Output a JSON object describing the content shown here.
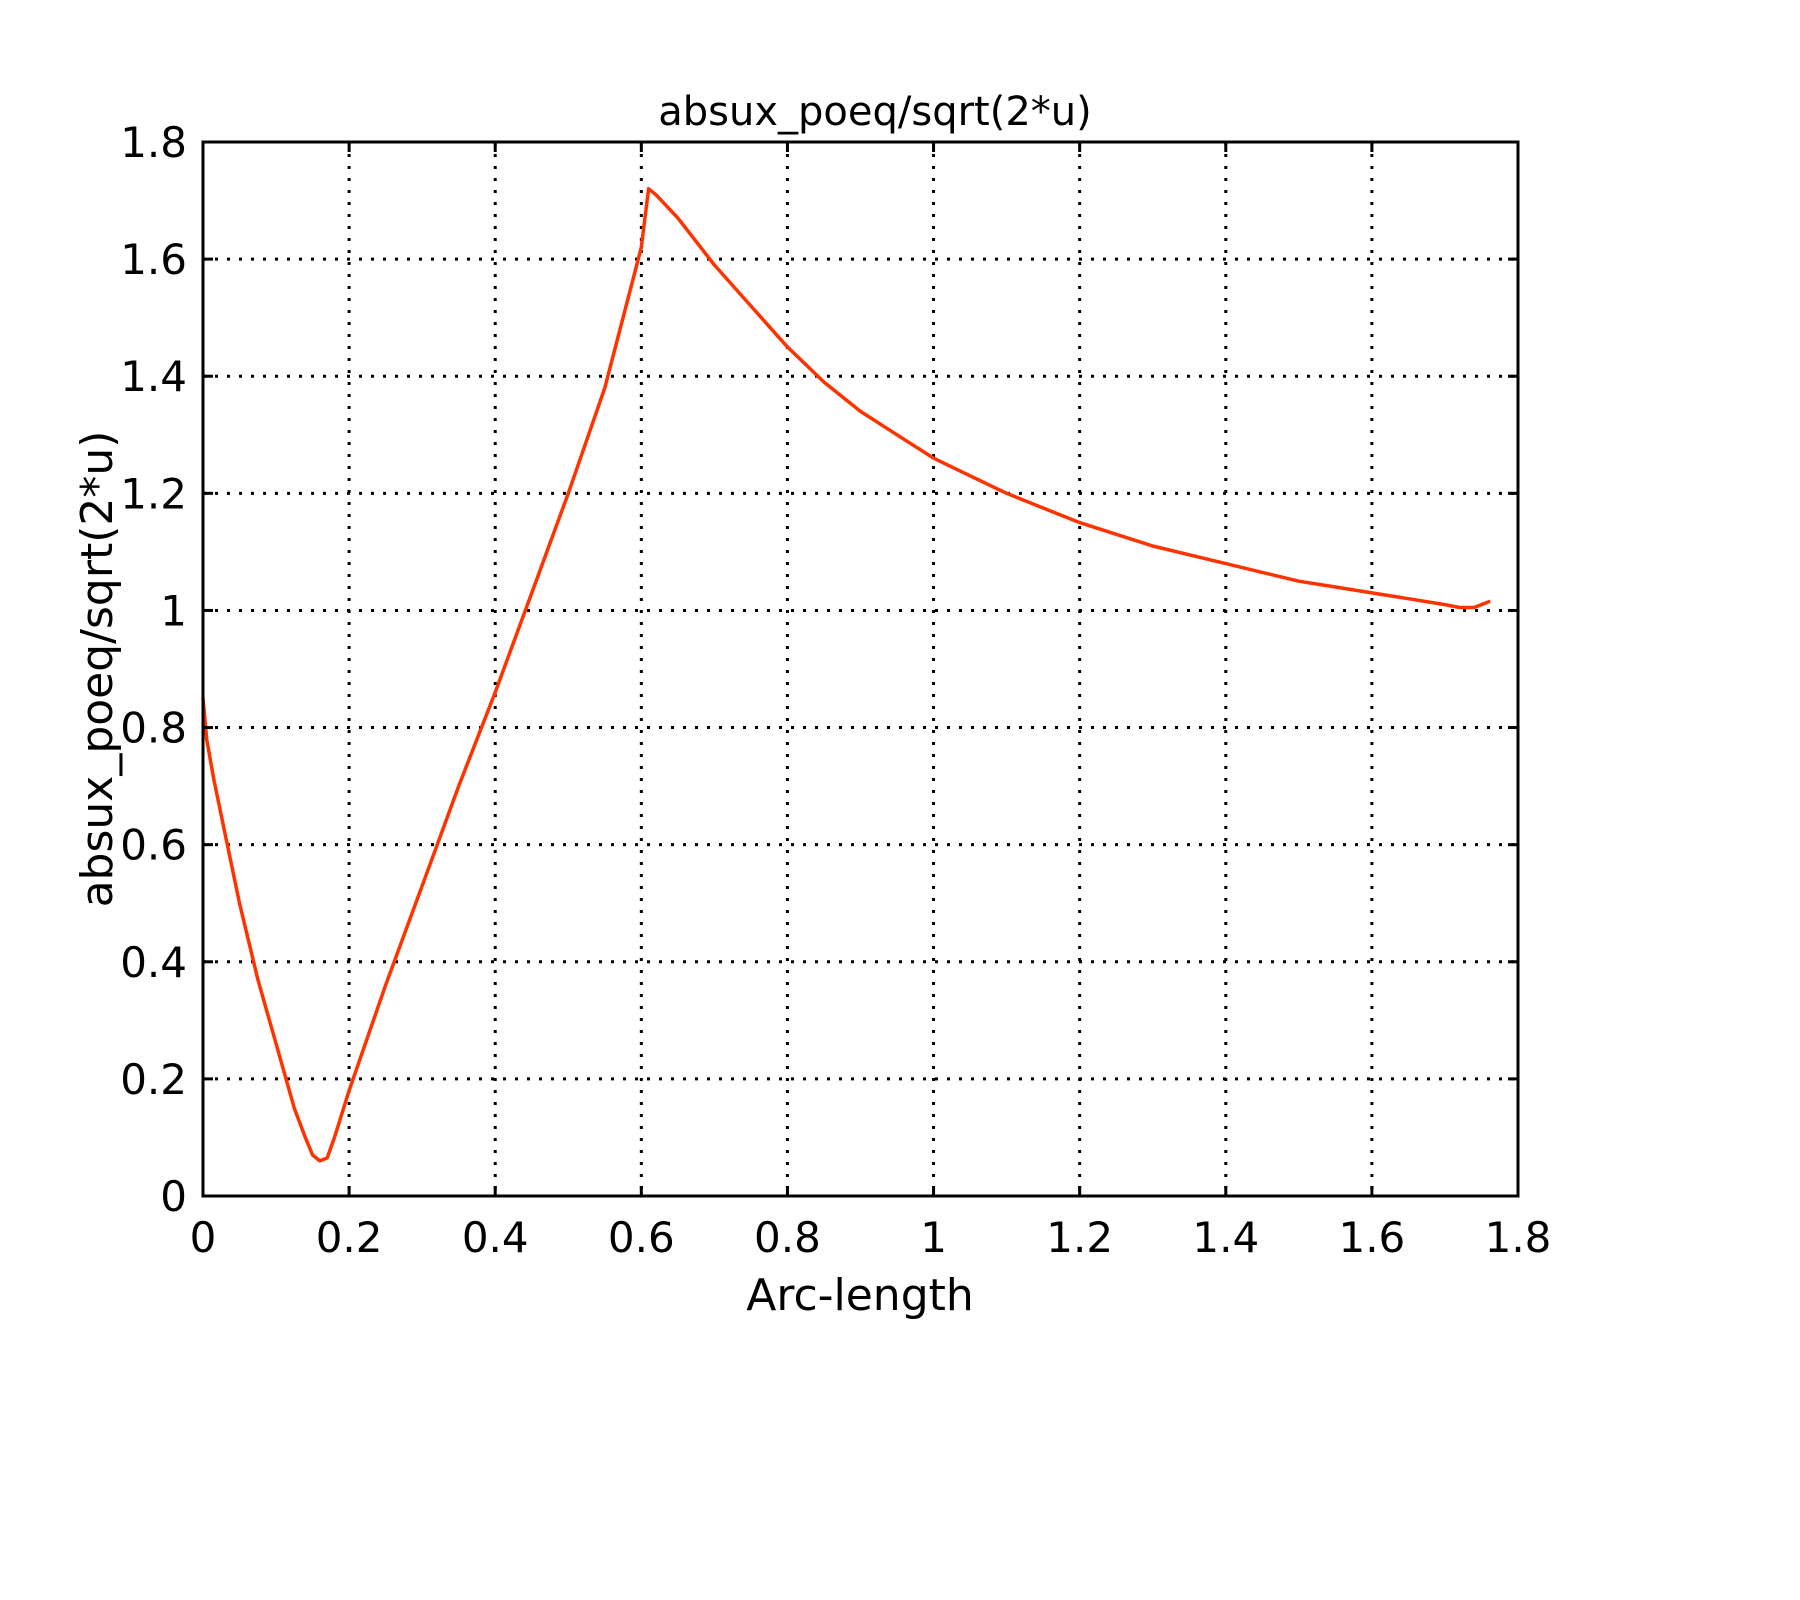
{
  "chart_data": {
    "type": "line",
    "title": "absux_poeq/sqrt(2*u)",
    "xlabel": "Arc-length",
    "ylabel": "absux_poeq/sqrt(2*u)",
    "xlim": [
      0,
      1.8
    ],
    "ylim": [
      0,
      1.8
    ],
    "xticks": [
      "0",
      "0.2",
      "0.4",
      "0.6",
      "0.8",
      "1",
      "1.2",
      "1.4",
      "1.6",
      "1.8"
    ],
    "yticks": [
      "0",
      "0.2",
      "0.4",
      "0.6",
      "0.8",
      "1",
      "1.2",
      "1.4",
      "1.6",
      "1.8"
    ],
    "grid": true,
    "series_color": "#ff3300",
    "series": [
      {
        "x": [
          0.0,
          0.005,
          0.015,
          0.03,
          0.05,
          0.075,
          0.1,
          0.125,
          0.14,
          0.15,
          0.16,
          0.17,
          0.18,
          0.2,
          0.25,
          0.3,
          0.35,
          0.4,
          0.45,
          0.5,
          0.55,
          0.6,
          0.61,
          0.62,
          0.65,
          0.7,
          0.75,
          0.8,
          0.85,
          0.9,
          0.95,
          1.0,
          1.05,
          1.1,
          1.15,
          1.2,
          1.25,
          1.3,
          1.35,
          1.4,
          1.45,
          1.5,
          1.55,
          1.6,
          1.65,
          1.7,
          1.72,
          1.74,
          1.76
        ],
        "y": [
          0.85,
          0.78,
          0.71,
          0.62,
          0.5,
          0.37,
          0.26,
          0.15,
          0.1,
          0.07,
          0.06,
          0.065,
          0.1,
          0.18,
          0.36,
          0.53,
          0.7,
          0.86,
          1.03,
          1.2,
          1.38,
          1.62,
          1.72,
          1.71,
          1.67,
          1.59,
          1.52,
          1.45,
          1.39,
          1.34,
          1.3,
          1.26,
          1.23,
          1.2,
          1.175,
          1.15,
          1.13,
          1.11,
          1.095,
          1.08,
          1.065,
          1.05,
          1.04,
          1.03,
          1.02,
          1.01,
          1.005,
          1.005,
          1.015
        ]
      }
    ]
  }
}
